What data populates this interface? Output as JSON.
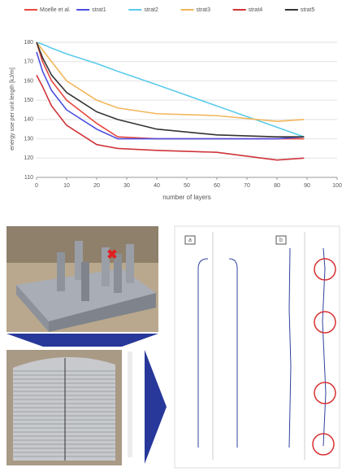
{
  "chart_data": {
    "type": "line",
    "y_label": "energy use per unit length [kJ/m]",
    "x_label": "number of layers",
    "x": [
      0,
      2,
      5,
      10,
      20,
      27,
      40,
      60,
      80,
      89
    ],
    "series": [
      {
        "name": "Moelle et al.",
        "color": "#e8473f",
        "values": [
          180,
          170,
          160,
          150,
          138,
          131,
          130,
          130,
          130,
          130
        ]
      },
      {
        "name": "strat1",
        "color": "#4b4fe0",
        "values": [
          175,
          165,
          155,
          145,
          135,
          130,
          130,
          130,
          130,
          131
        ]
      },
      {
        "name": "strat2",
        "color": "#5ccbec",
        "values": [
          180,
          179,
          177,
          174,
          169,
          165,
          158,
          147,
          136,
          131
        ]
      },
      {
        "name": "strat3",
        "color": "#f2b65c",
        "values": [
          180,
          176,
          170,
          160,
          150,
          146,
          143,
          142,
          139,
          140
        ]
      },
      {
        "name": "strat4",
        "color": "#d0343a",
        "values": [
          163,
          157,
          147,
          137,
          127,
          125,
          124,
          123,
          119,
          120
        ]
      },
      {
        "name": "strat5",
        "color": "#333333",
        "values": [
          180,
          172,
          163,
          154,
          144,
          140,
          135,
          132,
          131,
          131
        ]
      }
    ],
    "xlim": [
      0,
      100
    ],
    "xticks": [
      0,
      10,
      20,
      30,
      40,
      50,
      60,
      70,
      80,
      90,
      100
    ],
    "ylim": [
      110,
      180
    ],
    "yticks": [
      110,
      120,
      130,
      140,
      150,
      160,
      170,
      180
    ],
    "grid": true,
    "legend": "top"
  },
  "figure": {
    "panel_a": "a",
    "panel_b": "b"
  }
}
